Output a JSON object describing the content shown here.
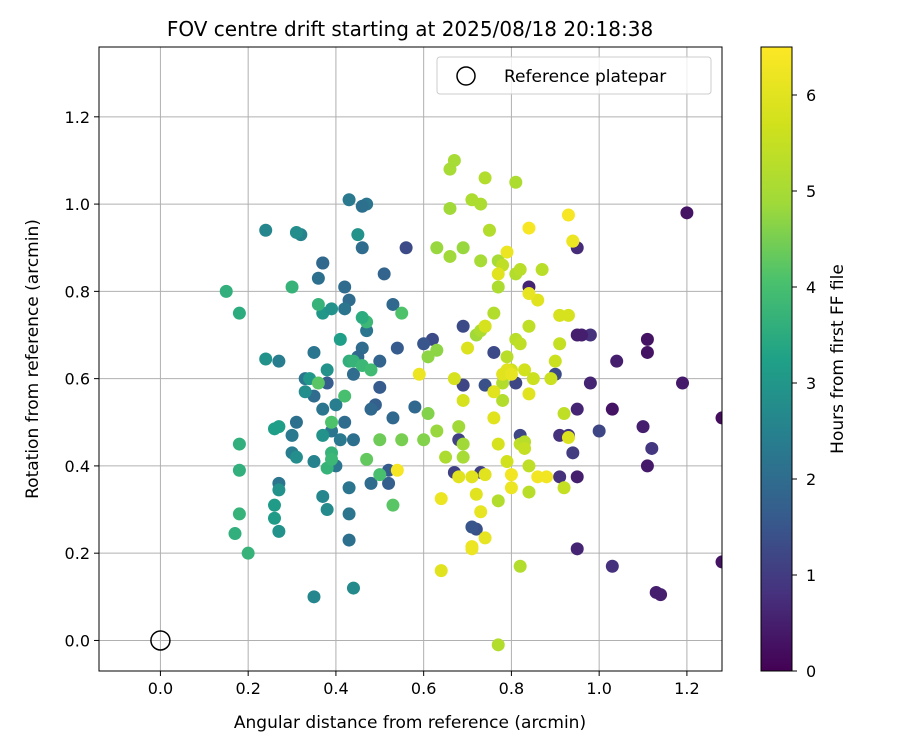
{
  "chart_data": {
    "type": "scatter",
    "title": "FOV centre drift starting at 2025/08/18 20:18:38",
    "xlabel": "Angular distance from reference (arcmin)",
    "ylabel": "Rotation from reference (arcmin)",
    "xlim": [
      -0.14,
      1.28
    ],
    "ylim": [
      -0.07,
      1.36
    ],
    "xticks": [
      "0.0",
      "0.2",
      "0.4",
      "0.6",
      "0.8",
      "1.0",
      "1.2"
    ],
    "yticks": [
      "0.0",
      "0.2",
      "0.4",
      "0.6",
      "0.8",
      "1.0",
      "1.2"
    ],
    "grid": true,
    "legend": {
      "location": "upper right",
      "entries": [
        {
          "label": "Reference platepar",
          "marker": "open-circle",
          "x": 0.0,
          "y": 0.0
        }
      ]
    },
    "colorbar": {
      "label": "Hours from first FF file",
      "colormap": "viridis",
      "range": [
        0,
        6.5
      ],
      "ticks": [
        "0",
        "1",
        "2",
        "3",
        "4",
        "5",
        "6"
      ]
    },
    "points": [
      [
        1.2,
        0.98,
        0.3
      ],
      [
        1.28,
        0.51,
        0.2
      ],
      [
        1.28,
        0.18,
        0.3
      ],
      [
        1.19,
        0.59,
        0.4
      ],
      [
        1.13,
        0.11,
        0.5
      ],
      [
        1.14,
        0.105,
        0.5
      ],
      [
        1.12,
        0.44,
        0.9
      ],
      [
        1.11,
        0.69,
        0.3
      ],
      [
        1.11,
        0.66,
        0.3
      ],
      [
        1.11,
        0.4,
        0.4
      ],
      [
        1.1,
        0.49,
        0.5
      ],
      [
        1.04,
        0.64,
        0.5
      ],
      [
        1.03,
        0.53,
        0.3
      ],
      [
        1.03,
        0.17,
        0.8
      ],
      [
        1.0,
        0.48,
        1.2
      ],
      [
        0.98,
        0.7,
        0.8
      ],
      [
        0.98,
        0.59,
        0.6
      ],
      [
        0.95,
        0.7,
        0.5
      ],
      [
        0.96,
        0.7,
        0.5
      ],
      [
        0.95,
        0.9,
        0.7
      ],
      [
        0.95,
        0.53,
        0.6
      ],
      [
        0.95,
        0.21,
        0.6
      ],
      [
        0.95,
        0.375,
        0.5
      ],
      [
        0.94,
        0.43,
        1.0
      ],
      [
        0.93,
        0.47,
        0.9
      ],
      [
        0.91,
        0.47,
        0.8
      ],
      [
        0.91,
        0.375,
        0.8
      ],
      [
        0.9,
        0.61,
        1.3
      ],
      [
        0.84,
        0.81,
        0.6
      ],
      [
        0.81,
        0.59,
        1.2
      ],
      [
        0.82,
        0.47,
        1.2
      ],
      [
        0.76,
        0.66,
        1.3
      ],
      [
        0.74,
        0.585,
        1.4
      ],
      [
        0.73,
        0.385,
        1.1
      ],
      [
        0.72,
        0.255,
        1.4
      ],
      [
        0.71,
        0.26,
        1.5
      ],
      [
        0.69,
        0.72,
        1.3
      ],
      [
        0.69,
        0.585,
        1.2
      ],
      [
        0.68,
        0.46,
        1.1
      ],
      [
        0.67,
        0.385,
        1.1
      ],
      [
        0.62,
        0.69,
        1.3
      ],
      [
        0.6,
        0.68,
        1.5
      ],
      [
        0.58,
        0.535,
        1.9
      ],
      [
        0.56,
        0.9,
        1.3
      ],
      [
        0.54,
        0.67,
        1.6
      ],
      [
        0.53,
        0.77,
        1.9
      ],
      [
        0.51,
        0.84,
        1.8
      ],
      [
        0.52,
        0.39,
        1.6
      ],
      [
        0.52,
        0.36,
        1.7
      ],
      [
        0.53,
        0.51,
        1.9
      ],
      [
        0.5,
        0.64,
        1.8
      ],
      [
        0.5,
        0.58,
        1.6
      ],
      [
        0.49,
        0.54,
        1.7
      ],
      [
        0.48,
        0.53,
        1.9
      ],
      [
        0.48,
        0.36,
        2.0
      ],
      [
        0.47,
        1.0,
        2.2
      ],
      [
        0.46,
        0.995,
        2.1
      ],
      [
        0.46,
        0.9,
        2.0
      ],
      [
        0.47,
        0.71,
        2.2
      ],
      [
        0.46,
        0.67,
        2.0
      ],
      [
        0.45,
        0.65,
        1.9
      ],
      [
        0.43,
        1.01,
        2.3
      ],
      [
        0.44,
        0.61,
        2.0
      ],
      [
        0.44,
        0.46,
        2.1
      ],
      [
        0.42,
        0.81,
        2.0
      ],
      [
        0.43,
        0.78,
        2.0
      ],
      [
        0.42,
        0.76,
        2.2
      ],
      [
        0.42,
        0.5,
        2.0
      ],
      [
        0.43,
        0.29,
        2.2
      ],
      [
        0.43,
        0.23,
        2.1
      ],
      [
        0.43,
        0.35,
        2.2
      ],
      [
        0.41,
        0.46,
        2.3
      ],
      [
        0.4,
        0.4,
        2.2
      ],
      [
        0.39,
        0.48,
        2.2
      ],
      [
        0.37,
        0.865,
        1.8
      ],
      [
        0.37,
        0.865,
        1.9
      ],
      [
        0.38,
        0.59,
        1.6
      ],
      [
        0.37,
        0.53,
        2.2
      ],
      [
        0.36,
        0.83,
        2.1
      ],
      [
        0.35,
        0.66,
        2.2
      ],
      [
        0.35,
        0.56,
        2.0
      ],
      [
        0.32,
        0.93,
        2.5
      ],
      [
        0.33,
        0.6,
        2.2
      ],
      [
        0.31,
        0.5,
        2.1
      ],
      [
        0.3,
        0.47,
        2.3
      ],
      [
        0.3,
        0.43,
        2.4
      ],
      [
        0.27,
        0.36,
        2.2
      ],
      [
        0.27,
        0.64,
        2.4
      ],
      [
        0.24,
        0.94,
        2.6
      ],
      [
        0.31,
        0.935,
        2.8
      ],
      [
        0.24,
        0.645,
        2.9
      ],
      [
        0.35,
        0.41,
        2.5
      ],
      [
        0.37,
        0.33,
        2.6
      ],
      [
        0.38,
        0.3,
        2.7
      ],
      [
        0.35,
        0.1,
        2.6
      ],
      [
        0.44,
        0.12,
        2.7
      ],
      [
        0.4,
        0.54,
        2.4
      ],
      [
        0.45,
        0.93,
        2.9
      ],
      [
        0.37,
        0.75,
        3.0
      ],
      [
        0.39,
        0.76,
        2.9
      ],
      [
        0.41,
        0.69,
        3.2
      ],
      [
        0.38,
        0.62,
        2.9
      ],
      [
        0.37,
        0.47,
        2.9
      ],
      [
        0.34,
        0.6,
        3.0
      ],
      [
        0.33,
        0.57,
        2.8
      ],
      [
        0.31,
        0.42,
        2.8
      ],
      [
        0.27,
        0.345,
        2.9
      ],
      [
        0.27,
        0.25,
        2.9
      ],
      [
        0.26,
        0.28,
        3.1
      ],
      [
        0.26,
        0.31,
        3.1
      ],
      [
        0.27,
        0.49,
        3.2
      ],
      [
        0.26,
        0.485,
        3.2
      ],
      [
        0.3,
        0.81,
        3.7
      ],
      [
        0.18,
        0.75,
        3.5
      ],
      [
        0.15,
        0.8,
        3.6
      ],
      [
        0.18,
        0.45,
        3.6
      ],
      [
        0.18,
        0.39,
        3.6
      ],
      [
        0.17,
        0.245,
        3.6
      ],
      [
        0.18,
        0.29,
        3.7
      ],
      [
        0.2,
        0.2,
        3.7
      ],
      [
        0.36,
        0.77,
        3.7
      ],
      [
        0.43,
        0.64,
        3.6
      ],
      [
        0.44,
        0.64,
        3.7
      ],
      [
        0.46,
        0.63,
        3.8
      ],
      [
        0.48,
        0.62,
        3.9
      ],
      [
        0.47,
        0.73,
        3.8
      ],
      [
        0.46,
        0.74,
        3.5
      ],
      [
        0.39,
        0.43,
        3.7
      ],
      [
        0.38,
        0.395,
        3.7
      ],
      [
        0.39,
        0.415,
        3.8
      ],
      [
        0.42,
        0.56,
        4.0
      ],
      [
        0.36,
        0.59,
        4.2
      ],
      [
        0.39,
        0.5,
        4.1
      ],
      [
        0.47,
        0.415,
        4.3
      ],
      [
        0.5,
        0.38,
        4.0
      ],
      [
        0.53,
        0.31,
        4.2
      ],
      [
        0.55,
        0.75,
        4.1
      ],
      [
        0.5,
        0.46,
        4.4
      ],
      [
        0.55,
        0.46,
        4.5
      ],
      [
        0.6,
        0.46,
        4.6
      ],
      [
        0.61,
        0.52,
        4.6
      ],
      [
        0.61,
        0.65,
        4.7
      ],
      [
        0.63,
        0.665,
        4.7
      ],
      [
        0.63,
        0.48,
        4.8
      ],
      [
        0.63,
        0.9,
        4.8
      ],
      [
        0.66,
        0.99,
        4.9
      ],
      [
        0.66,
        0.88,
        4.9
      ],
      [
        0.66,
        1.08,
        5.0
      ],
      [
        0.67,
        1.1,
        5.0
      ],
      [
        0.69,
        0.9,
        4.8
      ],
      [
        0.68,
        0.49,
        4.9
      ],
      [
        0.69,
        0.45,
        4.9
      ],
      [
        0.69,
        0.42,
        5.0
      ],
      [
        0.65,
        0.42,
        5.1
      ],
      [
        0.71,
        1.01,
        5.1
      ],
      [
        0.73,
        1.0,
        5.1
      ],
      [
        0.74,
        1.06,
        5.2
      ],
      [
        0.73,
        0.87,
        5.0
      ],
      [
        0.72,
        0.7,
        4.9
      ],
      [
        0.73,
        0.71,
        5.1
      ],
      [
        0.74,
        0.72,
        5.2
      ],
      [
        0.75,
        0.94,
        5.2
      ],
      [
        0.76,
        0.75,
        5.2
      ],
      [
        0.77,
        0.87,
        5.0
      ],
      [
        0.77,
        0.81,
        5.1
      ],
      [
        0.78,
        0.86,
        5.4
      ],
      [
        0.78,
        0.55,
        5.2
      ],
      [
        0.78,
        0.59,
        5.2
      ],
      [
        0.79,
        0.65,
        5.3
      ],
      [
        0.81,
        0.84,
        5.2
      ],
      [
        0.82,
        0.85,
        5.3
      ],
      [
        0.81,
        1.05,
        5.1
      ],
      [
        0.81,
        0.69,
        5.3
      ],
      [
        0.82,
        0.68,
        5.4
      ],
      [
        0.82,
        0.45,
        5.4
      ],
      [
        0.83,
        0.455,
        5.3
      ],
      [
        0.83,
        0.44,
        5.5
      ],
      [
        0.84,
        0.4,
        5.4
      ],
      [
        0.84,
        0.34,
        5.3
      ],
      [
        0.84,
        0.72,
        5.4
      ],
      [
        0.87,
        0.85,
        5.3
      ],
      [
        0.82,
        0.17,
        5.2
      ],
      [
        0.77,
        0.32,
        5.2
      ],
      [
        0.77,
        -0.01,
        5.2
      ],
      [
        0.79,
        0.41,
        5.7
      ],
      [
        0.8,
        0.62,
        5.7
      ],
      [
        0.83,
        0.62,
        5.7
      ],
      [
        0.85,
        0.6,
        5.6
      ],
      [
        0.89,
        0.6,
        5.6
      ],
      [
        0.9,
        0.64,
        5.6
      ],
      [
        0.91,
        0.68,
        5.5
      ],
      [
        0.92,
        0.52,
        5.4
      ],
      [
        0.92,
        0.35,
        5.5
      ],
      [
        0.93,
        0.745,
        5.8
      ],
      [
        0.91,
        0.745,
        5.8
      ],
      [
        0.93,
        0.465,
        5.9
      ],
      [
        0.86,
        0.78,
        6.0
      ],
      [
        0.84,
        0.795,
        6.1
      ],
      [
        0.79,
        0.89,
        6.2
      ],
      [
        0.77,
        0.84,
        6.0
      ],
      [
        0.74,
        0.72,
        5.8
      ],
      [
        0.76,
        0.57,
        6.0
      ],
      [
        0.78,
        0.61,
        6.0
      ],
      [
        0.79,
        0.62,
        6.0
      ],
      [
        0.77,
        0.45,
        5.8
      ],
      [
        0.76,
        0.51,
        6.0
      ],
      [
        0.74,
        0.38,
        6.0
      ],
      [
        0.7,
        0.67,
        5.9
      ],
      [
        0.67,
        0.6,
        5.8
      ],
      [
        0.69,
        0.55,
        5.8
      ],
      [
        0.68,
        0.375,
        6.0
      ],
      [
        0.71,
        0.375,
        6.0
      ],
      [
        0.72,
        0.335,
        6.0
      ],
      [
        0.73,
        0.295,
        6.1
      ],
      [
        0.74,
        0.235,
        6.1
      ],
      [
        0.71,
        0.21,
        6.2
      ],
      [
        0.71,
        0.215,
        6.2
      ],
      [
        0.64,
        0.16,
        6.0
      ],
      [
        0.64,
        0.325,
        6.2
      ],
      [
        0.59,
        0.61,
        6.2
      ],
      [
        0.54,
        0.39,
        6.4
      ],
      [
        0.8,
        0.38,
        6.3
      ],
      [
        0.8,
        0.35,
        6.2
      ],
      [
        0.84,
        0.565,
        6.0
      ],
      [
        0.84,
        0.945,
        6.4
      ],
      [
        0.86,
        0.375,
        6.3
      ],
      [
        0.88,
        0.375,
        6.3
      ],
      [
        0.93,
        0.975,
        6.4
      ],
      [
        0.94,
        0.915,
        6.3
      ],
      [
        0.94,
        0.915,
        6.2
      ],
      [
        0.8,
        0.61,
        6.1
      ]
    ]
  }
}
